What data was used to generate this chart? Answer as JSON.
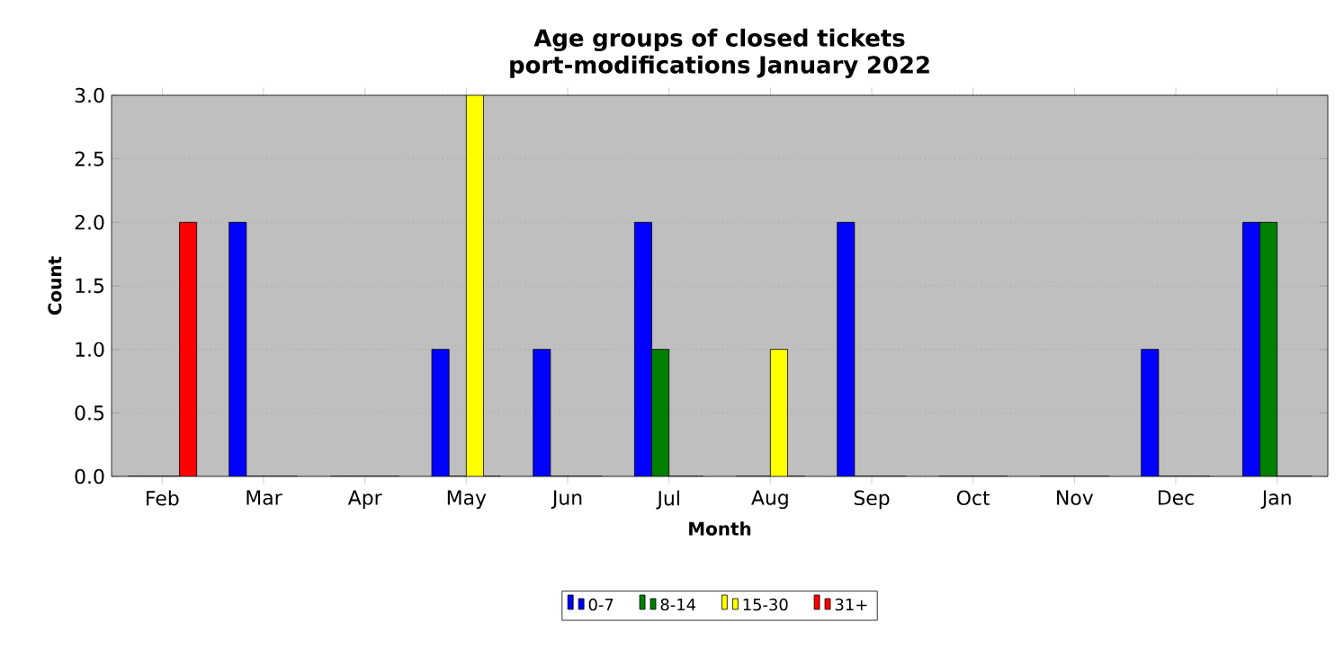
{
  "chart_data": {
    "type": "bar",
    "title": "Age groups of closed tickets port-modifications January 2022",
    "xlabel": "Month",
    "ylabel": "Count",
    "categories": [
      "Feb",
      "Mar",
      "Apr",
      "May",
      "Jun",
      "Jul",
      "Aug",
      "Sep",
      "Oct",
      "Nov",
      "Dec",
      "Jan"
    ],
    "series": [
      {
        "name": "0-7",
        "color": "#0000ff",
        "values": [
          0,
          2,
          0,
          1,
          1,
          2,
          0,
          2,
          0,
          0,
          1,
          2
        ]
      },
      {
        "name": "8-14",
        "color": "#008000",
        "values": [
          0,
          0,
          0,
          0,
          0,
          1,
          0,
          0,
          0,
          0,
          0,
          2
        ]
      },
      {
        "name": "15-30",
        "color": "#ffff00",
        "values": [
          0,
          0,
          0,
          3,
          0,
          0,
          1,
          0,
          0,
          0,
          0,
          0
        ]
      },
      {
        "name": "31+",
        "color": "#ff0000",
        "values": [
          2,
          0,
          0,
          0,
          0,
          0,
          0,
          0,
          0,
          0,
          0,
          0
        ]
      }
    ],
    "ylim": [
      0,
      3
    ],
    "yticks": [
      {
        "value": 0,
        "label": "0.0"
      },
      {
        "value": 0.5,
        "label": "0.5"
      },
      {
        "value": 1,
        "label": "1.0"
      },
      {
        "value": 1.5,
        "label": "1.5"
      },
      {
        "value": 2,
        "label": "2.0"
      },
      {
        "value": 2.5,
        "label": "2.5"
      },
      {
        "value": 3,
        "label": "3.0"
      }
    ],
    "grid": "y",
    "legend": "bottom"
  }
}
